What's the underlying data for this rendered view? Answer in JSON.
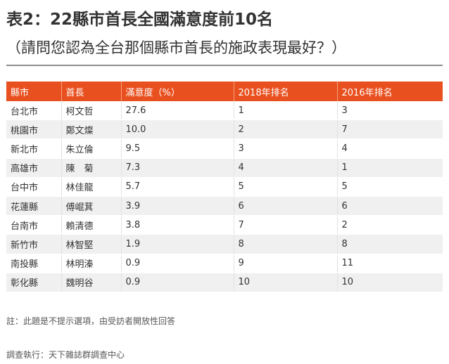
{
  "title": "表2：22縣市首長全國滿意度前10名",
  "subtitle": "（請問您認為全台那個縣市首長的施政表現最好？）",
  "table": {
    "headers": [
      "縣市",
      "首長",
      "滿意度（%）",
      "2018年排名",
      "2016年排名"
    ],
    "rows": [
      [
        "台北市",
        "柯文哲",
        "27.6",
        "1",
        "3"
      ],
      [
        "桃園市",
        "鄭文燦",
        "10.0",
        "2",
        "7"
      ],
      [
        "新北市",
        "朱立倫",
        "9.5",
        "3",
        "4"
      ],
      [
        "高雄市",
        "陳　菊",
        "7.3",
        "4",
        "1"
      ],
      [
        "台中市",
        "林佳龍",
        "5.7",
        "5",
        "5"
      ],
      [
        "花蓮縣",
        "傅崐萁",
        "3.9",
        "6",
        "6"
      ],
      [
        "台南市",
        "賴清德",
        "3.8",
        "7",
        "2"
      ],
      [
        "新竹市",
        "林智堅",
        "1.9",
        "8",
        "8"
      ],
      [
        "南投縣",
        "林明溱",
        "0.9",
        "9",
        "11"
      ],
      [
        "彰化縣",
        "魏明谷",
        "0.9",
        "10",
        "10"
      ]
    ]
  },
  "note": "註：此題是不提示選項，由受訪者開放性回答",
  "source": "調查執行：天下雜誌群調查中心",
  "colors": {
    "header_bg": "#e9501f",
    "stripe_bg": "#f0f0f0"
  }
}
